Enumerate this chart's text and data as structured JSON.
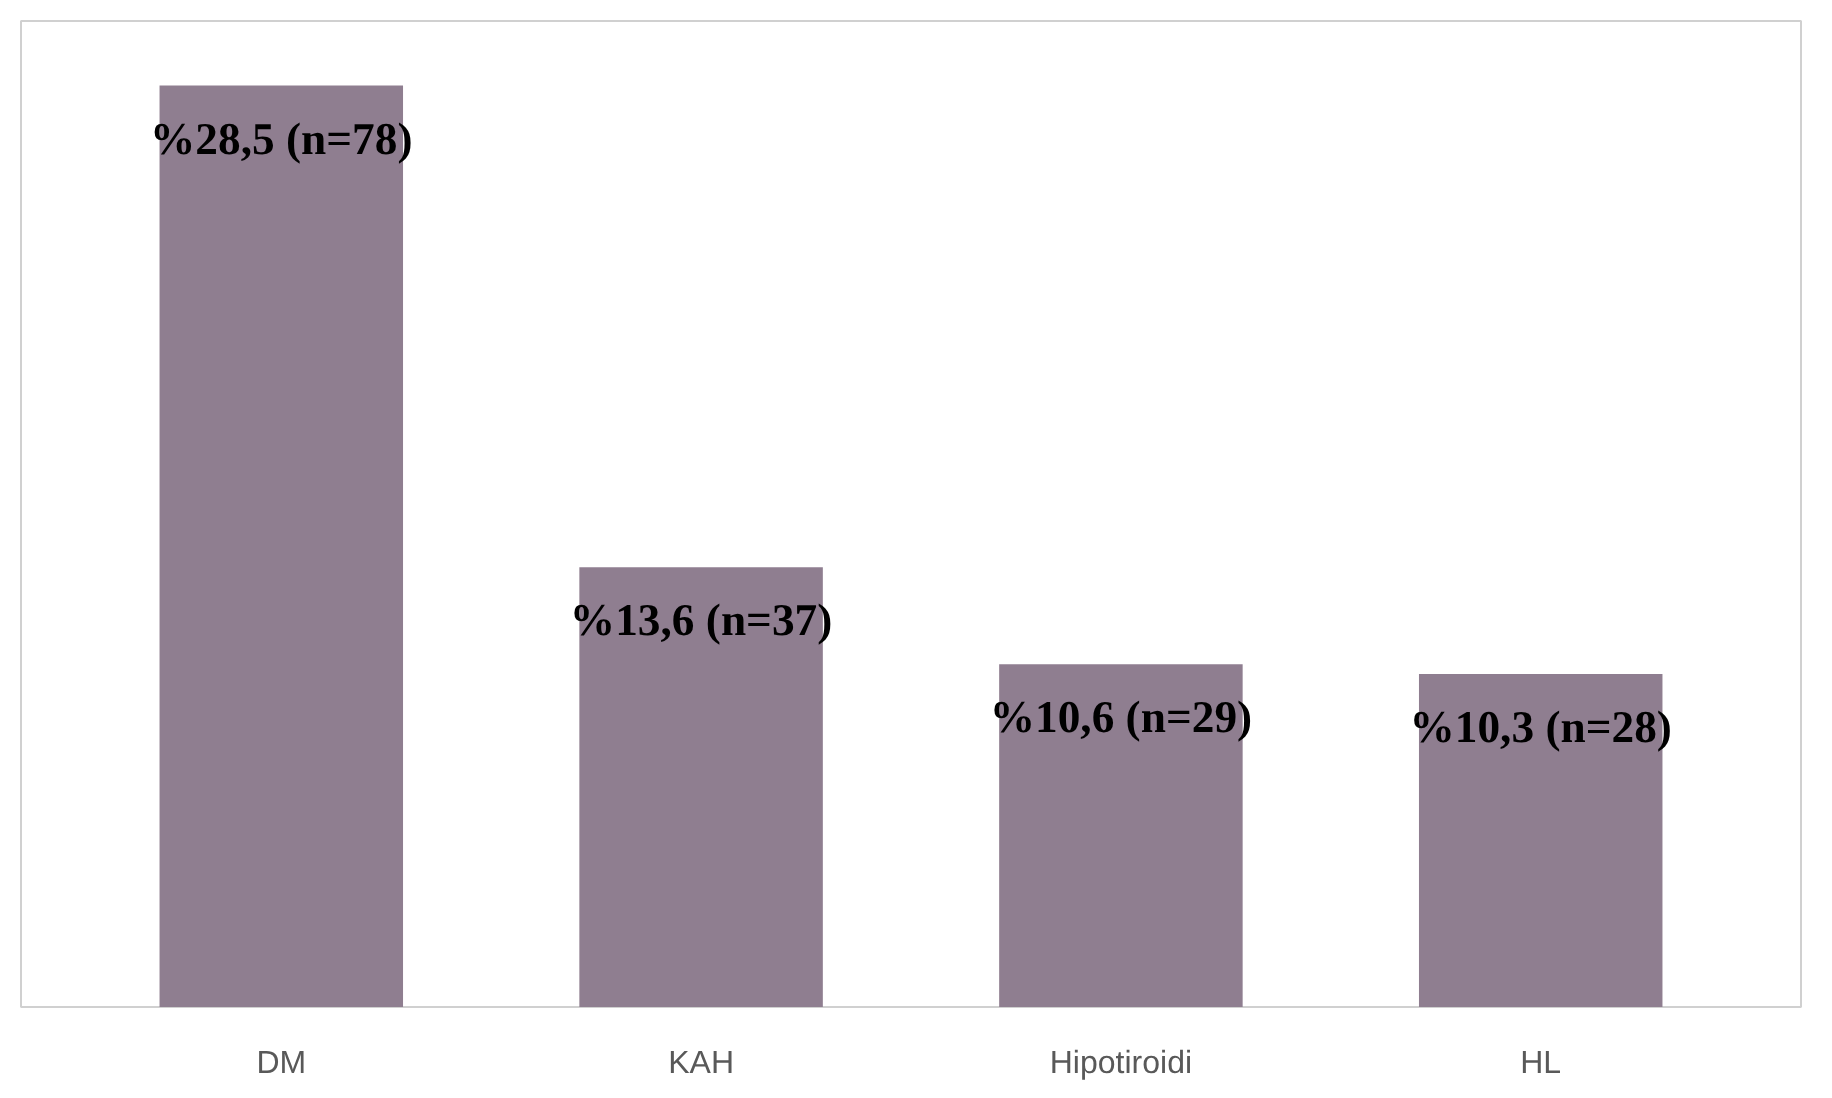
{
  "chart_data": {
    "type": "bar",
    "categories": [
      "DM",
      "KAH",
      "Hipotiroidi",
      "HL"
    ],
    "values": [
      28.5,
      13.6,
      10.6,
      10.3
    ],
    "value_labels": [
      "%28,5 (n=78)",
      "%13,6 (n=37)",
      "%10,6 (n=29)",
      "%10,3 (n=28)"
    ],
    "color": "#8f7e90",
    "grid": false
  }
}
